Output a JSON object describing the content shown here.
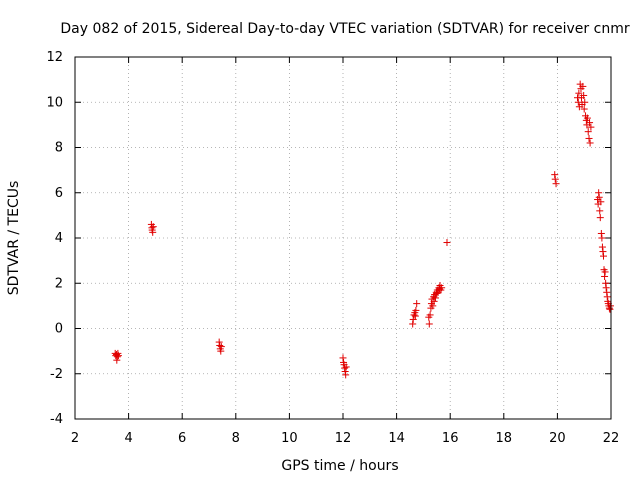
{
  "chart_data": {
    "type": "scatter",
    "title": "Day 082 of 2015, Sidereal Day-to-day VTEC variation (SDTVAR) for receiver cnmr",
    "xlabel": "GPS time / hours",
    "ylabel": "SDTVAR / TECUs",
    "xlim": [
      2,
      22
    ],
    "ylim": [
      -4,
      12
    ],
    "xticks": [
      2,
      4,
      6,
      8,
      10,
      12,
      14,
      16,
      18,
      20,
      22
    ],
    "yticks": [
      -4,
      -2,
      0,
      2,
      4,
      6,
      8,
      10,
      12
    ],
    "grid": true,
    "legend": "none",
    "marker": "plus",
    "color": "#e00000",
    "series": [
      {
        "name": "SDTVAR",
        "points": [
          [
            3.5,
            -1.1
          ],
          [
            3.52,
            -1.2
          ],
          [
            3.55,
            -1.15
          ],
          [
            3.56,
            -1.4
          ],
          [
            3.58,
            -1.25
          ],
          [
            3.6,
            -1.1
          ],
          [
            3.62,
            -1.2
          ],
          [
            4.85,
            4.6
          ],
          [
            4.87,
            4.45
          ],
          [
            4.88,
            4.35
          ],
          [
            4.9,
            4.25
          ],
          [
            4.92,
            4.5
          ],
          [
            7.38,
            -0.6
          ],
          [
            7.4,
            -0.75
          ],
          [
            7.42,
            -0.9
          ],
          [
            7.44,
            -1.0
          ],
          [
            7.46,
            -0.8
          ],
          [
            12.0,
            -1.3
          ],
          [
            12.02,
            -1.5
          ],
          [
            12.04,
            -1.6
          ],
          [
            12.06,
            -1.75
          ],
          [
            12.08,
            -1.9
          ],
          [
            12.1,
            -2.05
          ],
          [
            12.12,
            -1.7
          ],
          [
            14.6,
            0.2
          ],
          [
            14.62,
            0.4
          ],
          [
            14.65,
            0.6
          ],
          [
            14.68,
            0.7
          ],
          [
            14.7,
            0.55
          ],
          [
            14.72,
            0.8
          ],
          [
            14.75,
            1.1
          ],
          [
            15.2,
            0.5
          ],
          [
            15.22,
            0.2
          ],
          [
            15.25,
            0.6
          ],
          [
            15.28,
            0.9
          ],
          [
            15.3,
            1.1
          ],
          [
            15.32,
            1.3
          ],
          [
            15.35,
            1.0
          ],
          [
            15.38,
            1.4
          ],
          [
            15.4,
            1.2
          ],
          [
            15.42,
            1.5
          ],
          [
            15.45,
            1.35
          ],
          [
            15.48,
            1.6
          ],
          [
            15.5,
            1.55
          ],
          [
            15.52,
            1.7
          ],
          [
            15.55,
            1.6
          ],
          [
            15.58,
            1.8
          ],
          [
            15.6,
            1.75
          ],
          [
            15.62,
            1.9
          ],
          [
            15.65,
            1.7
          ],
          [
            15.68,
            1.8
          ],
          [
            15.88,
            3.8
          ],
          [
            19.9,
            6.8
          ],
          [
            19.92,
            6.6
          ],
          [
            19.95,
            6.4
          ],
          [
            20.75,
            10.2
          ],
          [
            20.78,
            10.0
          ],
          [
            20.8,
            10.4
          ],
          [
            20.82,
            9.8
          ],
          [
            20.85,
            10.8
          ],
          [
            20.88,
            10.6
          ],
          [
            20.9,
            10.2
          ],
          [
            20.92,
            9.9
          ],
          [
            20.95,
            10.7
          ],
          [
            20.98,
            10.3
          ],
          [
            21.0,
            9.7
          ],
          [
            21.02,
            10.0
          ],
          [
            21.05,
            9.4
          ],
          [
            21.08,
            9.2
          ],
          [
            21.1,
            9.0
          ],
          [
            21.12,
            9.3
          ],
          [
            21.15,
            8.7
          ],
          [
            21.18,
            8.4
          ],
          [
            21.2,
            9.1
          ],
          [
            21.22,
            8.2
          ],
          [
            21.25,
            8.9
          ],
          [
            21.5,
            5.7
          ],
          [
            21.52,
            5.5
          ],
          [
            21.54,
            6.0
          ],
          [
            21.56,
            5.8
          ],
          [
            21.58,
            5.2
          ],
          [
            21.6,
            4.9
          ],
          [
            21.62,
            5.6
          ],
          [
            21.64,
            4.2
          ],
          [
            21.66,
            4.0
          ],
          [
            21.68,
            3.6
          ],
          [
            21.7,
            3.4
          ],
          [
            21.72,
            3.2
          ],
          [
            21.74,
            2.6
          ],
          [
            21.76,
            2.3
          ],
          [
            21.78,
            2.5
          ],
          [
            21.8,
            2.0
          ],
          [
            21.82,
            1.8
          ],
          [
            21.84,
            1.6
          ],
          [
            21.86,
            1.4
          ],
          [
            21.88,
            1.2
          ],
          [
            21.9,
            1.1
          ],
          [
            21.92,
            1.0
          ],
          [
            21.94,
            0.9
          ],
          [
            21.96,
            0.85
          ],
          [
            21.98,
            1.0
          ]
        ]
      }
    ]
  }
}
